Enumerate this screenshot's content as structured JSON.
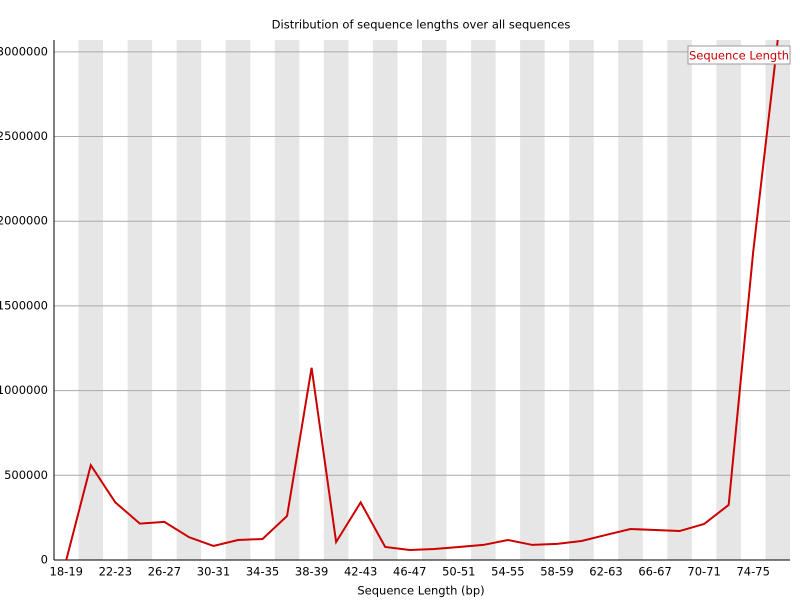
{
  "chart_data": {
    "type": "line",
    "title": "Distribution of sequence lengths over all sequences",
    "x_label": "Sequence Length (bp)",
    "categories": [
      "18-19",
      null,
      "22-23",
      null,
      "26-27",
      null,
      "30-31",
      null,
      "34-35",
      null,
      "38-39",
      null,
      "42-43",
      null,
      "46-47",
      null,
      "50-51",
      null,
      "54-55",
      null,
      "58-59",
      null,
      "62-63",
      null,
      "66-67",
      null,
      "70-71",
      null,
      "74-75",
      null
    ],
    "series": [
      {
        "name": "Sequence Length",
        "color": "#cc0000",
        "values": [
          0,
          560000,
          340000,
          215000,
          225000,
          135000,
          83000,
          118000,
          124000,
          260000,
          1135000,
          106000,
          340000,
          77000,
          59000,
          65000,
          77000,
          89000,
          118000,
          89000,
          95000,
          112000,
          148000,
          183000,
          177000,
          171000,
          213000,
          325000,
          1820000,
          3070000
        ]
      }
    ],
    "ylim": [
      0,
      3070000
    ],
    "yticks": [
      0,
      500000,
      1000000,
      1500000,
      2000000,
      2500000,
      3000000
    ],
    "grid": true,
    "band_color": "#e6e6e6",
    "legend": "top-right"
  }
}
